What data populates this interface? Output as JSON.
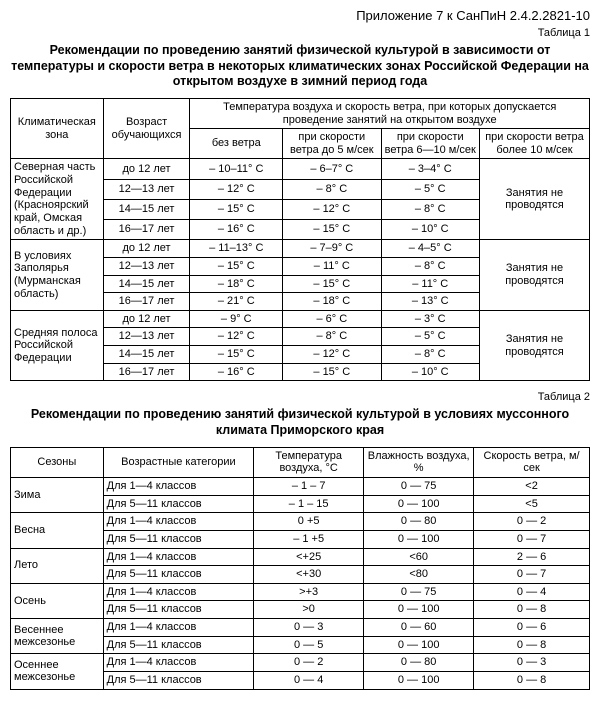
{
  "doc_header": "Приложение 7 к СанПиН 2.4.2.2821-10",
  "table1_label": "Таблица 1",
  "table1_title": "Рекомендации по проведению занятий физической культурой в зависимости от температуры и скорости ветра в некоторых климатических зонах Российской Федерации на открытом воздухе в зимний период года",
  "t1": {
    "h_zone": "Климатическая зона",
    "h_age": "Возраст обучающихся",
    "h_temp_group": "Температура воздуха и скорость ветра, при которых допускается проведение занятий на открытом воздухе",
    "h_col1": "без ветра",
    "h_col2": "при скорости ветра до 5 м/сек",
    "h_col3": "при скорости ветра 6—10 м/сек",
    "h_col4": "при скорости ветра более 10 м/сек",
    "no_class": "Занятия не проводятся",
    "zones": [
      {
        "name": "Северная часть Российской Федерации (Красноярский край, Омская область и др.)",
        "rows": [
          {
            "age": "до 12 лет",
            "c1": "– 10–11° С",
            "c2": "– 6–7° С",
            "c3": "– 3–4° С"
          },
          {
            "age": "12—13 лет",
            "c1": "– 12° С",
            "c2": "– 8° С",
            "c3": "– 5° С"
          },
          {
            "age": "14—15 лет",
            "c1": "– 15° С",
            "c2": "– 12° С",
            "c3": "– 8° С"
          },
          {
            "age": "16—17 лет",
            "c1": "– 16° С",
            "c2": "– 15° С",
            "c3": "– 10° С"
          }
        ]
      },
      {
        "name": "В условиях Заполярья (Мурманская область)",
        "rows": [
          {
            "age": "до 12 лет",
            "c1": "– 11–13° С",
            "c2": "– 7–9° С",
            "c3": "– 4–5° С"
          },
          {
            "age": "12—13 лет",
            "c1": "– 15° С",
            "c2": "– 11° С",
            "c3": "– 8° С"
          },
          {
            "age": "14—15 лет",
            "c1": "– 18° С",
            "c2": "– 15° С",
            "c3": "– 11° С"
          },
          {
            "age": "16—17 лет",
            "c1": "– 21° С",
            "c2": "– 18° С",
            "c3": "– 13° С"
          }
        ]
      },
      {
        "name": "Средняя полоса Российской Федерации",
        "rows": [
          {
            "age": "до 12 лет",
            "c1": "– 9° С",
            "c2": "– 6° С",
            "c3": "– 3° С"
          },
          {
            "age": "12—13 лет",
            "c1": "– 12° С",
            "c2": "– 8° С",
            "c3": "– 5° С"
          },
          {
            "age": "14—15 лет",
            "c1": "– 15° С",
            "c2": "– 12° С",
            "c3": "– 8° С"
          },
          {
            "age": "16—17 лет",
            "c1": "– 16° С",
            "c2": "– 15° С",
            "c3": "– 10° С"
          }
        ]
      }
    ]
  },
  "table2_label": "Таблица 2",
  "table2_title": "Рекомендации по проведению занятий физической культурой в условиях муссонного климата Приморского края",
  "t2": {
    "h_season": "Сезоны",
    "h_age": "Возрастные категории",
    "h_temp": "Температура воздуха, °С",
    "h_hum": "Влажность воздуха, %",
    "h_wind": "Скорость ветра, м/сек",
    "seasons": [
      {
        "name": "Зима",
        "rows": [
          {
            "age": "Для 1—4 классов",
            "t": "– 1 – 7",
            "h": "0 — 75",
            "w": "<2"
          },
          {
            "age": "Для 5—11 классов",
            "t": "– 1 – 15",
            "h": "0 — 100",
            "w": "<5"
          }
        ]
      },
      {
        "name": "Весна",
        "rows": [
          {
            "age": "Для 1—4 классов",
            "t": "0  +5",
            "h": "0 — 80",
            "w": "0 — 2"
          },
          {
            "age": "Для 5—11 классов",
            "t": "– 1  +5",
            "h": "0 — 100",
            "w": "0 — 7"
          }
        ]
      },
      {
        "name": "Лето",
        "rows": [
          {
            "age": "Для 1—4 классов",
            "t": "<+25",
            "h": "<60",
            "w": "2 — 6"
          },
          {
            "age": "Для 5—11 классов",
            "t": "<+30",
            "h": "<80",
            "w": "0 — 7"
          }
        ]
      },
      {
        "name": "Осень",
        "rows": [
          {
            "age": "Для 1—4 классов",
            "t": ">+3",
            "h": "0 — 75",
            "w": "0 — 4"
          },
          {
            "age": "Для 5—11 классов",
            "t": ">0",
            "h": "0 — 100",
            "w": "0 — 8"
          }
        ]
      },
      {
        "name": "Весеннее межсезонье",
        "rows": [
          {
            "age": "Для 1—4 классов",
            "t": "0 — 3",
            "h": "0 — 60",
            "w": "0 — 6"
          },
          {
            "age": "Для 5—11 классов",
            "t": "0 — 5",
            "h": "0 — 100",
            "w": "0 — 8"
          }
        ]
      },
      {
        "name": "Осеннее межсезонье",
        "rows": [
          {
            "age": "Для 1—4 классов",
            "t": "0 — 2",
            "h": "0 — 80",
            "w": "0 — 3"
          },
          {
            "age": "Для 5—11 классов",
            "t": "0 — 4",
            "h": "0 — 100",
            "w": "0 — 8"
          }
        ]
      }
    ]
  }
}
